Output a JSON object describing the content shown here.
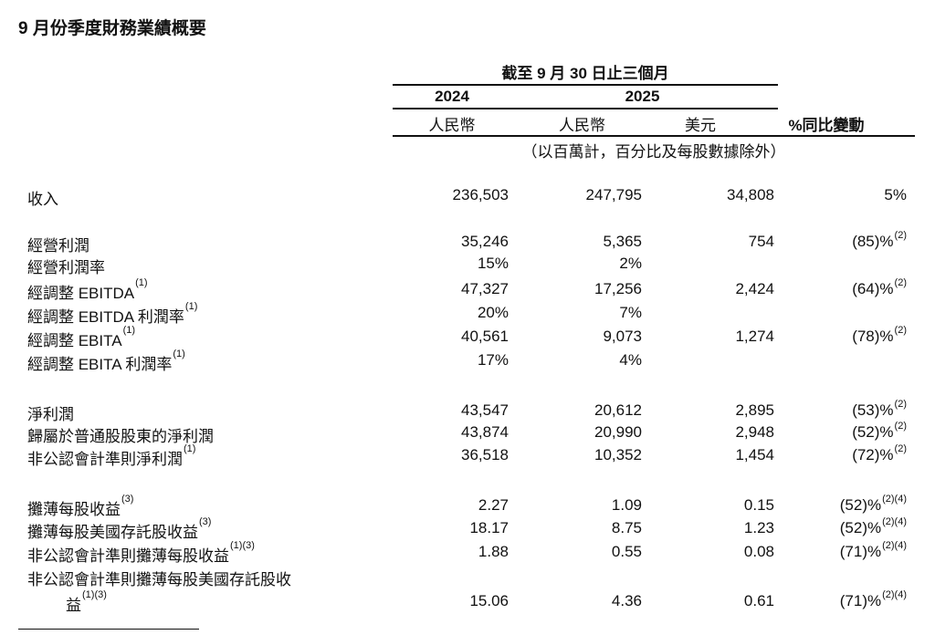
{
  "title": "9 月份季度財務業績概要",
  "header": {
    "period": "截至 9 月 30 日止三個月",
    "year_2024": "2024",
    "year_2025": "2025",
    "col_rmb_2024": "人民幣",
    "col_rmb_2025": "人民幣",
    "col_usd": "美元",
    "col_yoy": "%同比變動",
    "unit_note": "（以百萬計，百分比及每股數據除外）"
  },
  "rows": [
    {
      "label": "收入",
      "sup": "",
      "v2024": "236,503",
      "v2025": "247,795",
      "usd": "34,808",
      "yoy": "5%",
      "yoy_sup": ""
    },
    {
      "label": "經營利潤",
      "sup": "",
      "v2024": "35,246",
      "v2025": "5,365",
      "usd": "754",
      "yoy": "(85)%",
      "yoy_sup": "(2)"
    },
    {
      "label": "經營利潤率",
      "sup": "",
      "v2024": "15%",
      "v2025": "2%",
      "usd": "",
      "yoy": "",
      "yoy_sup": ""
    },
    {
      "label": "經調整 EBITDA",
      "sup": "(1)",
      "v2024": "47,327",
      "v2025": "17,256",
      "usd": "2,424",
      "yoy": "(64)%",
      "yoy_sup": "(2)"
    },
    {
      "label": "經調整 EBITDA 利潤率",
      "sup": "(1)",
      "v2024": "20%",
      "v2025": "7%",
      "usd": "",
      "yoy": "",
      "yoy_sup": ""
    },
    {
      "label": "經調整 EBITA",
      "sup": "(1)",
      "v2024": "40,561",
      "v2025": "9,073",
      "usd": "1,274",
      "yoy": "(78)%",
      "yoy_sup": "(2)"
    },
    {
      "label": "經調整 EBITA 利潤率",
      "sup": "(1)",
      "v2024": "17%",
      "v2025": "4%",
      "usd": "",
      "yoy": "",
      "yoy_sup": ""
    },
    {
      "label": "淨利潤",
      "sup": "",
      "v2024": "43,547",
      "v2025": "20,612",
      "usd": "2,895",
      "yoy": "(53)%",
      "yoy_sup": "(2)"
    },
    {
      "label": "歸屬於普通股股東的淨利潤",
      "sup": "",
      "v2024": "43,874",
      "v2025": "20,990",
      "usd": "2,948",
      "yoy": "(52)%",
      "yoy_sup": "(2)"
    },
    {
      "label": "非公認會計準則淨利潤",
      "sup": "(1)",
      "v2024": "36,518",
      "v2025": "10,352",
      "usd": "1,454",
      "yoy": "(72)%",
      "yoy_sup": "(2)"
    },
    {
      "label": "攤薄每股收益",
      "sup": "(3)",
      "v2024": "2.27",
      "v2025": "1.09",
      "usd": "0.15",
      "yoy": "(52)%",
      "yoy_sup": "(2)(4)"
    },
    {
      "label": "攤薄每股美國存託股收益",
      "sup": "(3)",
      "v2024": "18.17",
      "v2025": "8.75",
      "usd": "1.23",
      "yoy": "(52)%",
      "yoy_sup": "(2)(4)"
    },
    {
      "label": "非公認會計準則攤薄每股收益",
      "sup": "(1)(3)",
      "v2024": "1.88",
      "v2025": "0.55",
      "usd": "0.08",
      "yoy": "(71)%",
      "yoy_sup": "(2)(4)"
    },
    {
      "label": "非公認會計準則攤薄每股美國存託股收",
      "sup": "",
      "v2024": "",
      "v2025": "",
      "usd": "",
      "yoy": "",
      "yoy_sup": ""
    },
    {
      "label": "益",
      "sup": "(1)(3)",
      "v2024": "15.06",
      "v2025": "4.36",
      "usd": "0.61",
      "yoy": "(71)%",
      "yoy_sup": "(2)(4)",
      "indent": true
    }
  ]
}
